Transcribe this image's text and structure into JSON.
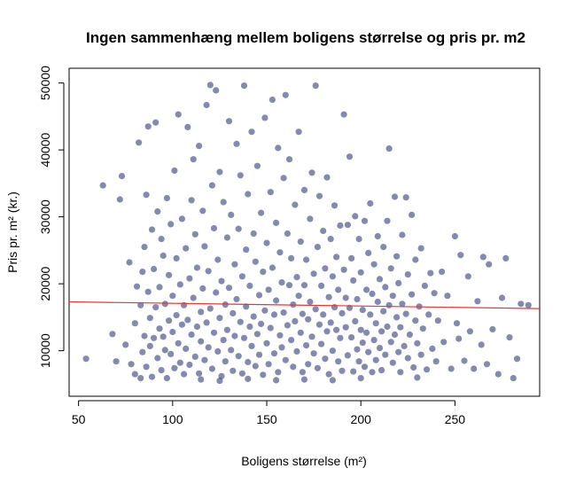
{
  "chart_data": {
    "type": "scatter",
    "title": "Ingen sammenhæng mellem boligens størrelse og pris pr. m2",
    "xlabel": "Boligens størrelse (m²)",
    "ylabel": "Pris pr. m² (kr.)",
    "xlim": [
      45,
      295
    ],
    "ylim": [
      3200,
      52200
    ],
    "x_ticks": [
      "50",
      "100",
      "150",
      "200",
      "250"
    ],
    "y_ticks": [
      "10000",
      "20000",
      "30000",
      "40000",
      "50000"
    ],
    "x_tick_values": [
      50,
      100,
      150,
      200,
      250
    ],
    "y_tick_values": [
      10000,
      20000,
      30000,
      40000,
      50000
    ],
    "grid": false,
    "legend": "none",
    "point_color": "#1f2a6e",
    "trend_line": {
      "color": "#e0393a",
      "x": [
        45,
        295
      ],
      "y": [
        17300,
        16300
      ]
    },
    "points": [
      [
        54,
        8800
      ],
      [
        63,
        34700
      ],
      [
        68,
        12500
      ],
      [
        70,
        8400
      ],
      [
        72,
        32600
      ],
      [
        73,
        36100
      ],
      [
        75,
        10900
      ],
      [
        77,
        23200
      ],
      [
        78,
        8000
      ],
      [
        80,
        6500
      ],
      [
        80,
        14100
      ],
      [
        81,
        19600
      ],
      [
        82,
        41100
      ],
      [
        83,
        5900
      ],
      [
        83,
        16800
      ],
      [
        84,
        9800
      ],
      [
        84,
        21800
      ],
      [
        85,
        12200
      ],
      [
        85,
        25500
      ],
      [
        86,
        7600
      ],
      [
        86,
        33300
      ],
      [
        87,
        18800
      ],
      [
        87,
        43500
      ],
      [
        88,
        10700
      ],
      [
        88,
        14900
      ],
      [
        89,
        28100
      ],
      [
        89,
        6100
      ],
      [
        90,
        11900
      ],
      [
        90,
        22200
      ],
      [
        91,
        16500
      ],
      [
        91,
        44100
      ],
      [
        92,
        8900
      ],
      [
        92,
        30800
      ],
      [
        93,
        13300
      ],
      [
        93,
        19500
      ],
      [
        94,
        26700
      ],
      [
        94,
        7100
      ],
      [
        95,
        12100
      ],
      [
        95,
        24200
      ],
      [
        96,
        10100
      ],
      [
        96,
        17000
      ],
      [
        97,
        32800
      ],
      [
        97,
        5900
      ],
      [
        98,
        14500
      ],
      [
        98,
        21300
      ],
      [
        99,
        28900
      ],
      [
        99,
        9500
      ],
      [
        100,
        12800
      ],
      [
        100,
        18200
      ],
      [
        101,
        36900
      ],
      [
        101,
        7400
      ],
      [
        102,
        15300
      ],
      [
        102,
        23800
      ],
      [
        103,
        11100
      ],
      [
        103,
        45300
      ],
      [
        104,
        8200
      ],
      [
        104,
        19900
      ],
      [
        105,
        13900
      ],
      [
        105,
        29700
      ],
      [
        106,
        6500
      ],
      [
        106,
        16800
      ],
      [
        107,
        25300
      ],
      [
        107,
        10300
      ],
      [
        108,
        43400
      ],
      [
        108,
        14600
      ],
      [
        109,
        20800
      ],
      [
        109,
        7900
      ],
      [
        110,
        32500
      ],
      [
        110,
        12400
      ],
      [
        111,
        38600
      ],
      [
        111,
        17900
      ],
      [
        112,
        9100
      ],
      [
        112,
        27400
      ],
      [
        113,
        13600
      ],
      [
        113,
        22400
      ],
      [
        114,
        6600
      ],
      [
        114,
        40600
      ],
      [
        115,
        15800
      ],
      [
        115,
        11400
      ],
      [
        116,
        30900
      ],
      [
        116,
        19300
      ],
      [
        117,
        8600
      ],
      [
        117,
        25600
      ],
      [
        118,
        14200
      ],
      [
        118,
        46700
      ],
      [
        119,
        10500
      ],
      [
        119,
        21900
      ],
      [
        120,
        49700
      ],
      [
        120,
        16300
      ],
      [
        121,
        7300
      ],
      [
        121,
        34700
      ],
      [
        122,
        12700
      ],
      [
        122,
        28300
      ],
      [
        123,
        48900
      ],
      [
        123,
        18700
      ],
      [
        124,
        9900
      ],
      [
        124,
        23600
      ],
      [
        125,
        14900
      ],
      [
        125,
        36700
      ],
      [
        126,
        6200
      ],
      [
        126,
        20400
      ],
      [
        127,
        11600
      ],
      [
        127,
        32200
      ],
      [
        128,
        16900
      ],
      [
        128,
        8400
      ],
      [
        129,
        26900
      ],
      [
        129,
        13100
      ],
      [
        130,
        44300
      ],
      [
        130,
        19400
      ],
      [
        131,
        10100
      ],
      [
        131,
        30300
      ],
      [
        132,
        15600
      ],
      [
        132,
        7000
      ],
      [
        133,
        22900
      ],
      [
        133,
        12200
      ],
      [
        134,
        40900
      ],
      [
        134,
        17700
      ],
      [
        135,
        9200
      ],
      [
        135,
        28200
      ],
      [
        136,
        14300
      ],
      [
        136,
        36200
      ],
      [
        137,
        21100
      ],
      [
        137,
        6600
      ],
      [
        138,
        49600
      ],
      [
        138,
        11900
      ],
      [
        139,
        25100
      ],
      [
        139,
        16600
      ],
      [
        140,
        8300
      ],
      [
        140,
        33400
      ],
      [
        141,
        13600
      ],
      [
        141,
        19700
      ],
      [
        142,
        10700
      ],
      [
        142,
        42700
      ],
      [
        143,
        27500
      ],
      [
        143,
        15100
      ],
      [
        144,
        7700
      ],
      [
        144,
        23300
      ],
      [
        145,
        12500
      ],
      [
        145,
        37600
      ],
      [
        146,
        18300
      ],
      [
        146,
        9400
      ],
      [
        147,
        30600
      ],
      [
        147,
        14000
      ],
      [
        148,
        21800
      ],
      [
        148,
        6400
      ],
      [
        149,
        44800
      ],
      [
        149,
        16000
      ],
      [
        150,
        11100
      ],
      [
        150,
        26100
      ],
      [
        151,
        19100
      ],
      [
        151,
        8000
      ],
      [
        152,
        33700
      ],
      [
        152,
        13400
      ],
      [
        153,
        47500
      ],
      [
        153,
        22400
      ],
      [
        154,
        15400
      ],
      [
        154,
        9600
      ],
      [
        155,
        29100
      ],
      [
        155,
        17500
      ],
      [
        156,
        6800
      ],
      [
        156,
        40300
      ],
      [
        157,
        12300
      ],
      [
        157,
        24700
      ],
      [
        158,
        20200
      ],
      [
        158,
        10500
      ],
      [
        159,
        35800
      ],
      [
        159,
        15700
      ],
      [
        160,
        48200
      ],
      [
        160,
        8600
      ],
      [
        161,
        27500
      ],
      [
        161,
        13800
      ],
      [
        162,
        19800
      ],
      [
        162,
        38600
      ],
      [
        163,
        11600
      ],
      [
        163,
        23800
      ],
      [
        164,
        16900
      ],
      [
        164,
        7600
      ],
      [
        165,
        31800
      ],
      [
        165,
        14400
      ],
      [
        166,
        21000
      ],
      [
        166,
        9900
      ],
      [
        167,
        42700
      ],
      [
        167,
        18200
      ],
      [
        168,
        12700
      ],
      [
        168,
        26300
      ],
      [
        169,
        15500
      ],
      [
        169,
        6800
      ],
      [
        170,
        34000
      ],
      [
        170,
        19800
      ],
      [
        171,
        10800
      ],
      [
        171,
        23600
      ],
      [
        172,
        14700
      ],
      [
        172,
        8000
      ],
      [
        173,
        29700
      ],
      [
        173,
        17300
      ],
      [
        174,
        36600
      ],
      [
        174,
        12100
      ],
      [
        175,
        21500
      ],
      [
        175,
        9600
      ],
      [
        176,
        49600
      ],
      [
        176,
        16200
      ],
      [
        177,
        25500
      ],
      [
        177,
        7400
      ],
      [
        178,
        13900
      ],
      [
        178,
        33100
      ],
      [
        179,
        19700
      ],
      [
        179,
        11000
      ],
      [
        180,
        27900
      ],
      [
        180,
        15400
      ],
      [
        181,
        8800
      ],
      [
        181,
        22300
      ],
      [
        182,
        12900
      ],
      [
        182,
        35900
      ],
      [
        183,
        18000
      ],
      [
        183,
        6500
      ],
      [
        184,
        26700
      ],
      [
        184,
        14200
      ],
      [
        185,
        21100
      ],
      [
        185,
        10000
      ],
      [
        186,
        31700
      ],
      [
        186,
        16500
      ],
      [
        187,
        13100
      ],
      [
        187,
        24000
      ],
      [
        188,
        8400
      ],
      [
        188,
        19100
      ],
      [
        189,
        28700
      ],
      [
        189,
        11900
      ],
      [
        190,
        15600
      ],
      [
        190,
        7000
      ],
      [
        191,
        45300
      ],
      [
        191,
        22100
      ],
      [
        192,
        13500
      ],
      [
        192,
        17900
      ],
      [
        193,
        9300
      ],
      [
        193,
        28800
      ],
      [
        194,
        39000
      ],
      [
        194,
        16400
      ],
      [
        195,
        12000
      ],
      [
        195,
        23800
      ],
      [
        196,
        6900
      ],
      [
        196,
        20500
      ],
      [
        197,
        14400
      ],
      [
        197,
        30100
      ],
      [
        198,
        10200
      ],
      [
        198,
        17700
      ],
      [
        199,
        8400
      ],
      [
        199,
        26700
      ],
      [
        200,
        13100
      ],
      [
        200,
        21700
      ],
      [
        201,
        11200
      ],
      [
        201,
        16100
      ],
      [
        202,
        29400
      ],
      [
        202,
        7600
      ],
      [
        203,
        19100
      ],
      [
        203,
        12700
      ],
      [
        204,
        24600
      ],
      [
        204,
        9800
      ],
      [
        205,
        15400
      ],
      [
        205,
        32000
      ],
      [
        206,
        6800
      ],
      [
        206,
        18500
      ],
      [
        207,
        11600
      ],
      [
        207,
        22900
      ],
      [
        208,
        14100
      ],
      [
        208,
        8600
      ],
      [
        209,
        27100
      ],
      [
        209,
        17300
      ],
      [
        210,
        10400
      ],
      [
        210,
        20700
      ],
      [
        211,
        12900
      ],
      [
        211,
        7100
      ],
      [
        212,
        25500
      ],
      [
        212,
        15900
      ],
      [
        213,
        9400
      ],
      [
        213,
        19500
      ],
      [
        214,
        13600
      ],
      [
        214,
        29400
      ],
      [
        215,
        40200
      ],
      [
        215,
        16800
      ],
      [
        216,
        11300
      ],
      [
        216,
        22300
      ],
      [
        217,
        8200
      ],
      [
        217,
        18200
      ],
      [
        218,
        33000
      ],
      [
        218,
        12400
      ],
      [
        219,
        24100
      ],
      [
        219,
        15000
      ],
      [
        220,
        9800
      ],
      [
        220,
        20100
      ],
      [
        221,
        13500
      ],
      [
        221,
        6800
      ],
      [
        222,
        27300
      ],
      [
        222,
        17000
      ],
      [
        223,
        10700
      ],
      [
        224,
        32900
      ],
      [
        224,
        15500
      ],
      [
        225,
        8900
      ],
      [
        225,
        21400
      ],
      [
        226,
        12400
      ],
      [
        227,
        30300
      ],
      [
        227,
        18400
      ],
      [
        228,
        7500
      ],
      [
        229,
        14500
      ],
      [
        229,
        23600
      ],
      [
        230,
        11100
      ],
      [
        231,
        16600
      ],
      [
        232,
        9400
      ],
      [
        232,
        25300
      ],
      [
        233,
        13300
      ],
      [
        234,
        19700
      ],
      [
        235,
        7200
      ],
      [
        236,
        15400
      ],
      [
        237,
        21600
      ],
      [
        238,
        10300
      ],
      [
        239,
        18600
      ],
      [
        240,
        8400
      ],
      [
        241,
        14500
      ],
      [
        243,
        21800
      ],
      [
        244,
        11300
      ],
      [
        246,
        18200
      ],
      [
        248,
        7300
      ],
      [
        250,
        27100
      ],
      [
        251,
        14100
      ],
      [
        252,
        11800
      ],
      [
        253,
        24300
      ],
      [
        255,
        8500
      ],
      [
        257,
        21100
      ],
      [
        258,
        12900
      ],
      [
        260,
        7300
      ],
      [
        262,
        17400
      ],
      [
        264,
        10900
      ],
      [
        265,
        24000
      ],
      [
        267,
        8000
      ],
      [
        268,
        22900
      ],
      [
        270,
        13200
      ],
      [
        273,
        6500
      ],
      [
        275,
        17900
      ],
      [
        277,
        23800
      ],
      [
        279,
        12000
      ],
      [
        281,
        5900
      ],
      [
        283,
        8800
      ],
      [
        285,
        17000
      ],
      [
        289,
        16800
      ],
      [
        125,
        5500
      ],
      [
        140,
        5800
      ],
      [
        155,
        5600
      ],
      [
        170,
        5700
      ],
      [
        185,
        5600
      ],
      [
        200,
        5900
      ],
      [
        115,
        5700
      ],
      [
        230,
        6000
      ]
    ]
  }
}
